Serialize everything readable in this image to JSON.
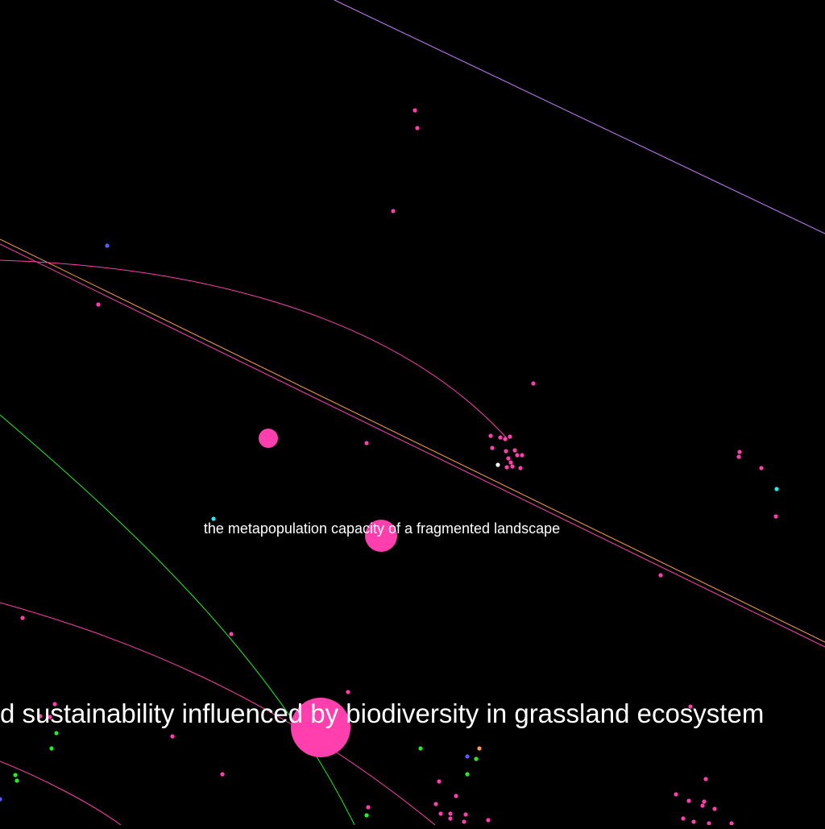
{
  "background": "#000000",
  "colors": {
    "pink": "#ff3fae",
    "violet": "#c77dff",
    "orange": "#ffa040",
    "green": "#22ee22",
    "cyan": "#22eeee",
    "blue": "#5a5aff",
    "white": "#ffffff"
  },
  "labels": {
    "small": "the metapopulation capacity of a fragmented landscape",
    "large": "d sustainability influenced by biodiversity in grassland ecosystem"
  }
}
